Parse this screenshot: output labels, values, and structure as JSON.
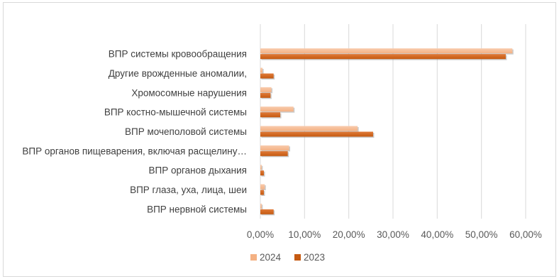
{
  "chart_data": {
    "type": "bar",
    "orientation": "horizontal",
    "title": "",
    "categories": [
      "ВПР системы кровообращения",
      "Другие врожденные аномалии,",
      "Хромосомные нарушения",
      "ВПР костно-мышечной системы",
      "ВПР мочеполовой системы",
      "ВПР органов пищеварения, включая расщелину…",
      "ВПР органов дыхания",
      "ВПР глаза, уха, лица, шеи",
      "ВПР нервной  системы"
    ],
    "series": [
      {
        "name": "2024",
        "color": "#f4b183",
        "values": [
          57.0,
          0.5,
          2.5,
          7.5,
          22.0,
          6.5,
          0.3,
          1.0,
          0.3
        ]
      },
      {
        "name": "2023",
        "color": "#c55a11",
        "values": [
          55.5,
          3.0,
          2.3,
          4.5,
          25.5,
          6.2,
          0.8,
          0.8,
          3.0
        ]
      }
    ],
    "xlim": [
      0,
      60
    ],
    "xticks": [
      "0,00%",
      "10,00%",
      "20,00%",
      "30,00%",
      "40,00%",
      "50,00%",
      "60,00%"
    ],
    "xlabel": "",
    "ylabel": "",
    "grid": true,
    "legend_position": "bottom"
  }
}
